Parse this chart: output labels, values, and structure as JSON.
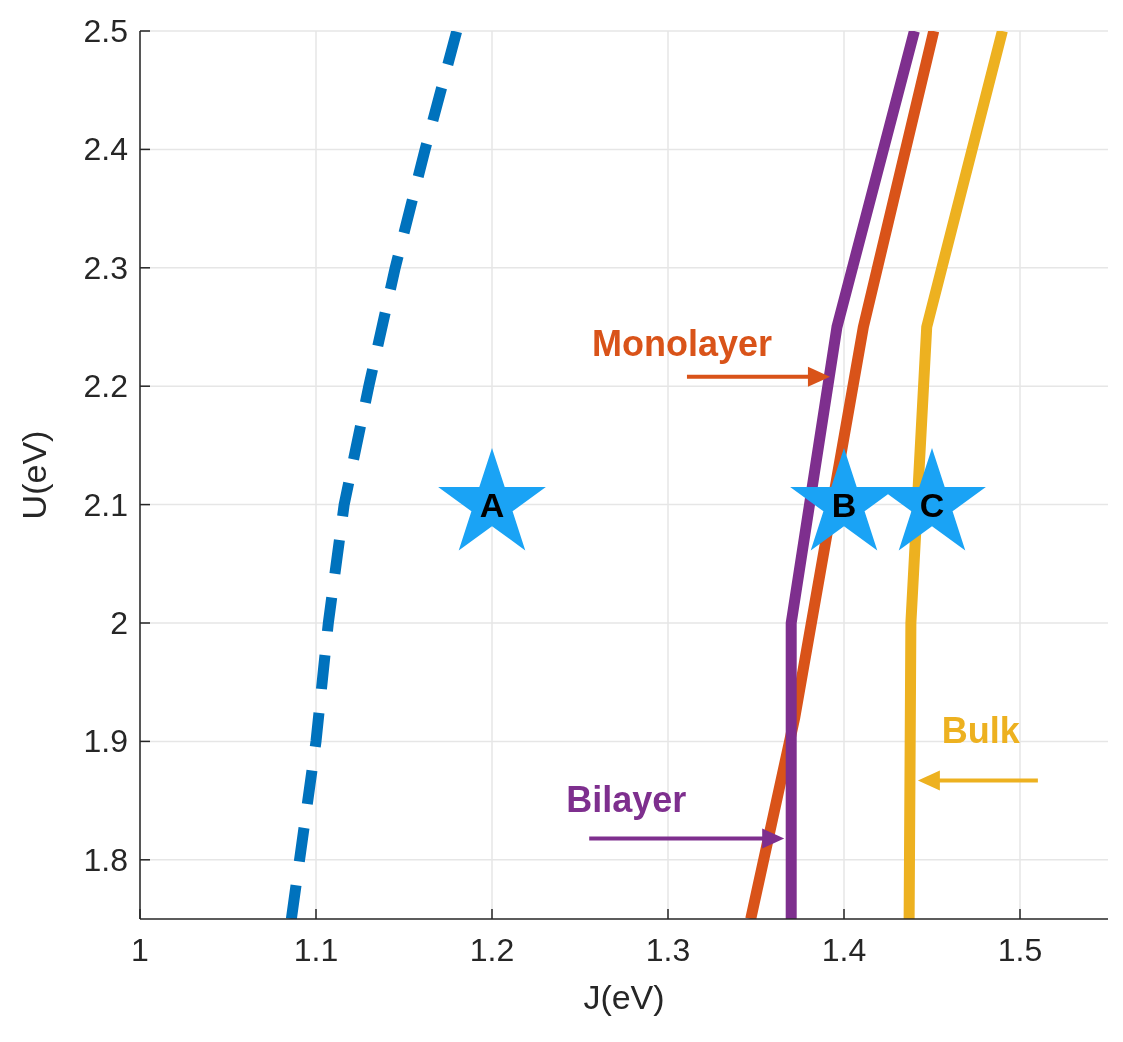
{
  "chart_data": {
    "type": "line",
    "xlabel": "J(eV)",
    "ylabel": "U(eV)",
    "xlim": [
      1,
      1.55
    ],
    "ylim": [
      1.75,
      2.5
    ],
    "xticks": [
      1,
      1.1,
      1.2,
      1.3,
      1.4,
      1.5
    ],
    "yticks": [
      1.8,
      1.9,
      2,
      2.1,
      2.2,
      2.3,
      2.4,
      2.5
    ],
    "grid": true,
    "series": [
      {
        "color": "#0072bd",
        "line_style": "dashed",
        "x": [
          1.086,
          1.1,
          1.107,
          1.116,
          1.13,
          1.145,
          1.162,
          1.18
        ],
        "values": [
          1.75,
          1.9,
          2,
          2.1,
          2.2,
          2.3,
          2.4,
          2.5
        ]
      },
      {
        "color": "#d95319",
        "line_style": "solid",
        "x": [
          1.347,
          1.372,
          1.411,
          1.451
        ],
        "values": [
          1.75,
          1.92,
          2.25,
          2.5
        ]
      },
      {
        "color": "#7e2f8e",
        "line_style": "solid",
        "x": [
          1.37,
          1.37,
          1.396,
          1.44
        ],
        "values": [
          1.75,
          2,
          2.25,
          2.5
        ]
      },
      {
        "color": "#edb120",
        "line_style": "solid",
        "x": [
          1.437,
          1.438,
          1.447,
          1.49
        ],
        "values": [
          1.75,
          2,
          2.25,
          2.5
        ]
      },
      {
        "type": "scatter",
        "marker": "star",
        "color": "#1aa3f5",
        "x": [
          1.2,
          1.4,
          1.45
        ],
        "values": [
          2.1,
          2.1,
          2.1
        ],
        "value_labels": [
          "A",
          "B",
          "C"
        ]
      }
    ],
    "annotations": [
      {
        "text": "Monolayer",
        "x": 1.396,
        "y": 2.208
      },
      {
        "text": "Bilayer",
        "x": 1.37,
        "y": 1.818
      },
      {
        "text": "Bulk",
        "x": 1.438,
        "y": 1.867
      }
    ]
  }
}
